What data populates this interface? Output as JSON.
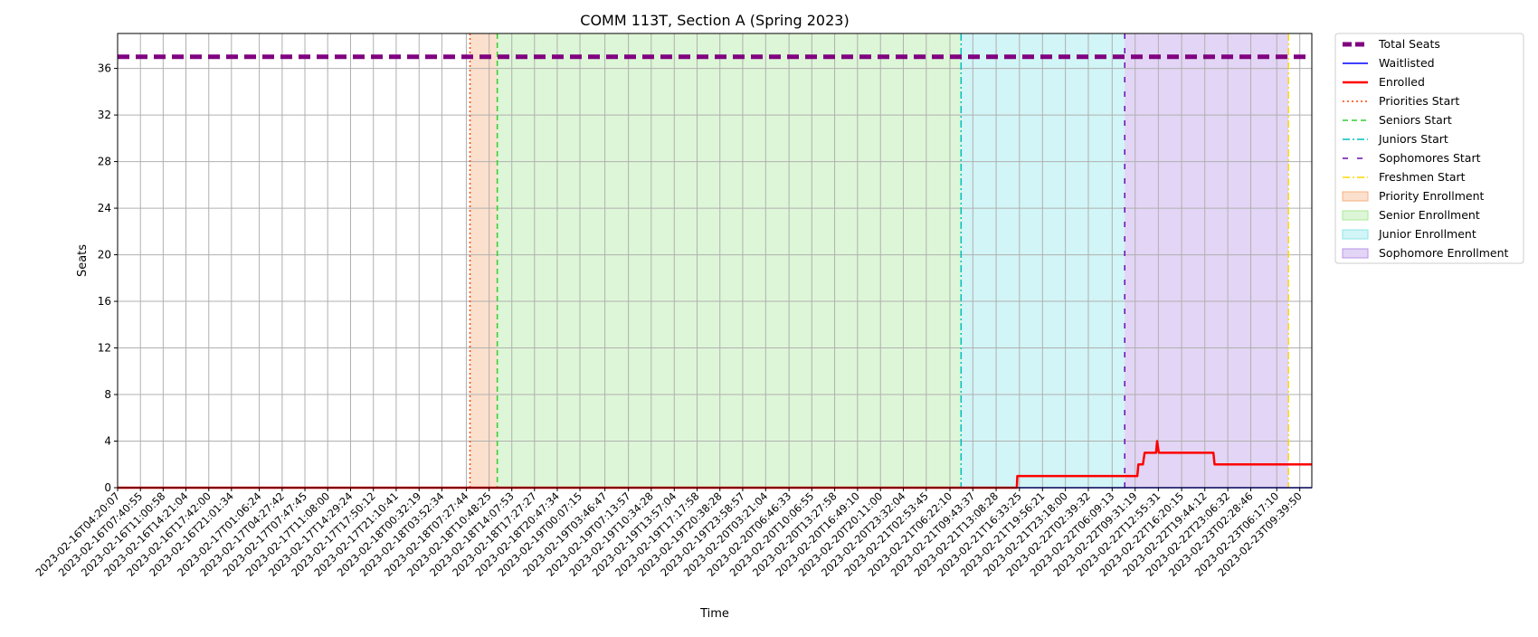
{
  "chart_data": {
    "type": "line",
    "title": "COMM 113T, Section A (Spring 2023)",
    "xlabel": "Time",
    "ylabel": "Seats",
    "ylim": [
      0,
      39
    ],
    "yticks": [
      0,
      4,
      8,
      12,
      16,
      20,
      24,
      28,
      32,
      36
    ],
    "xlim": [
      "2023-02-16T04:20:07",
      "2023-02-23T11:25:37"
    ],
    "grid": true,
    "legend_position": "outside-top-right",
    "x_tick_labels": [
      "2023-02-16T04:20:07",
      "2023-02-16T07:40:55",
      "2023-02-16T11:00:58",
      "2023-02-16T14:21:04",
      "2023-02-16T17:42:00",
      "2023-02-16T21:01:34",
      "2023-02-17T01:06:24",
      "2023-02-17T04:27:42",
      "2023-02-17T07:47:45",
      "2023-02-17T11:08:00",
      "2023-02-17T14:29:24",
      "2023-02-17T17:50:12",
      "2023-02-17T21:10:41",
      "2023-02-18T00:32:19",
      "2023-02-18T03:52:34",
      "2023-02-18T07:27:44",
      "2023-02-18T10:48:25",
      "2023-02-18T14:07:53",
      "2023-02-18T17:27:27",
      "2023-02-18T20:47:34",
      "2023-02-19T00:07:15",
      "2023-02-19T03:46:47",
      "2023-02-19T07:13:57",
      "2023-02-19T10:34:28",
      "2023-02-19T13:57:04",
      "2023-02-19T17:17:58",
      "2023-02-19T20:38:28",
      "2023-02-19T23:58:57",
      "2023-02-20T03:21:04",
      "2023-02-20T06:46:33",
      "2023-02-20T10:06:55",
      "2023-02-20T13:27:58",
      "2023-02-20T16:49:10",
      "2023-02-20T20:11:00",
      "2023-02-20T23:32:04",
      "2023-02-21T02:53:45",
      "2023-02-21T06:22:10",
      "2023-02-21T09:43:37",
      "2023-02-21T13:08:28",
      "2023-02-21T16:33:25",
      "2023-02-21T19:56:21",
      "2023-02-21T23:18:00",
      "2023-02-22T02:39:32",
      "2023-02-22T06:09:13",
      "2023-02-22T09:31:19",
      "2023-02-22T12:55:31",
      "2023-02-22T16:20:15",
      "2023-02-22T19:44:12",
      "2023-02-22T23:06:32",
      "2023-02-23T02:28:46",
      "2023-02-23T06:17:10",
      "2023-02-23T09:39:50"
    ],
    "series": [
      {
        "name": "Total Seats",
        "color": "#800080",
        "style": "dashed",
        "x": [
          "2023-02-16T04:20:07",
          "2023-02-23T11:25:37"
        ],
        "y": [
          37,
          37
        ]
      },
      {
        "name": "Waitlisted",
        "color": "#0000ff",
        "style": "solid",
        "x": [
          "2023-02-16T04:20:07",
          "2023-02-23T11:25:37"
        ],
        "y": [
          0,
          0
        ]
      },
      {
        "name": "Enrolled",
        "color": "#ff0000",
        "style": "solid",
        "x": [
          "2023-02-16T04:20:07",
          "2023-02-21T16:10:00",
          "2023-02-21T16:15:00",
          "2023-02-22T09:50:00",
          "2023-02-22T10:00:00",
          "2023-02-22T10:40:00",
          "2023-02-22T10:55:00",
          "2023-02-22T12:35:00",
          "2023-02-22T12:45:00",
          "2023-02-22T13:00:00",
          "2023-02-22T21:00:00",
          "2023-02-22T21:10:00",
          "2023-02-23T11:25:37"
        ],
        "y": [
          0,
          0,
          1,
          1,
          2,
          2,
          3,
          3,
          4,
          3,
          3,
          2,
          2
        ]
      }
    ],
    "vlines": [
      {
        "name": "Priorities Start",
        "color": "#ff4500",
        "style": "dotted",
        "x": "2023-02-18T08:00:00"
      },
      {
        "name": "Seniors Start",
        "color": "#32cd32",
        "style": "dashed",
        "x": "2023-02-18T12:00:00"
      },
      {
        "name": "Juniors Start",
        "color": "#00bfbf",
        "style": "dashdot",
        "x": "2023-02-21T08:00:00"
      },
      {
        "name": "Sophomores Start",
        "color": "#6a0dad",
        "style": "loosedash",
        "x": "2023-02-22T08:00:00"
      },
      {
        "name": "Freshmen Start",
        "color": "#ffd700",
        "style": "dashdot",
        "x": "2023-02-23T08:00:00"
      }
    ],
    "spans": [
      {
        "name": "Priority Enrollment",
        "color": "#f4b183",
        "from": "2023-02-18T08:00:00",
        "to": "2023-02-18T12:00:00"
      },
      {
        "name": "Senior Enrollment",
        "color": "#a9e99a",
        "from": "2023-02-18T12:00:00",
        "to": "2023-02-21T08:00:00"
      },
      {
        "name": "Junior Enrollment",
        "color": "#8ee6ea",
        "from": "2023-02-21T08:00:00",
        "to": "2023-02-22T08:00:00"
      },
      {
        "name": "Sophomore Enrollment",
        "color": "#b995e6",
        "from": "2023-02-22T08:00:00",
        "to": "2023-02-23T08:00:00"
      }
    ]
  }
}
